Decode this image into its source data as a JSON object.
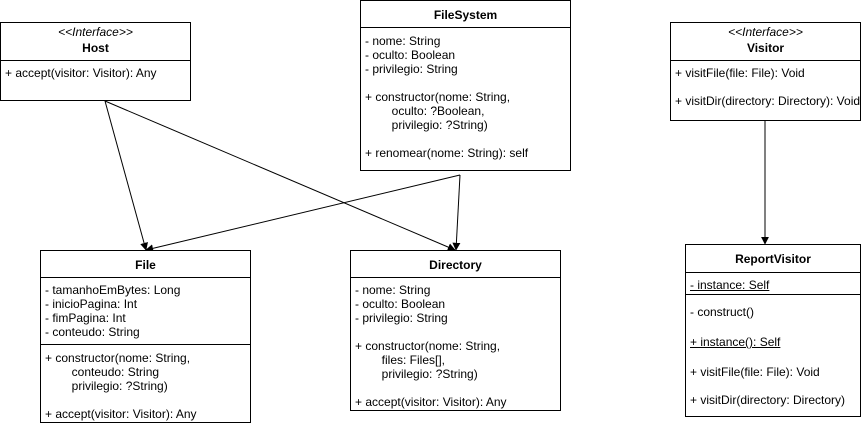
{
  "host": {
    "stereotype": "<<Interface>>",
    "name": "Host",
    "methods": [
      "+ accept(visitor: Visitor): Any"
    ]
  },
  "filesystem": {
    "name": "FileSystem",
    "attributes": [
      "- nome: String",
      "- oculto: Boolean",
      "- privilegio: String"
    ],
    "constructor": [
      "+ constructor(nome: String,",
      "        oculto: ?Boolean,",
      "        privilegio: ?String)"
    ],
    "rename": "+ renomear(nome: String): self"
  },
  "visitor": {
    "stereotype": "<<Interface>>",
    "name": "Visitor",
    "methods": [
      "+ visitFile(file: File): Void",
      "+ visitDir(directory: Directory): Void"
    ]
  },
  "file": {
    "name": "File",
    "attributes": [
      "- tamanhoEmBytes: Long",
      "- inicioPagina: Int",
      "- fimPagina: Int",
      "- conteudo: String"
    ],
    "constructor": [
      "+ constructor(nome: String,",
      "        conteudo: String",
      "        privilegio: ?String)"
    ],
    "accept": "+ accept(visitor: Visitor): Any"
  },
  "directory": {
    "name": "Directory",
    "attributes": [
      "- nome: String",
      "- oculto: Boolean",
      "- privilegio: String"
    ],
    "constructor": [
      "+ constructor(nome: String,",
      "        files: Files[],",
      "        privilegio: ?String)"
    ],
    "accept": "+ accept(visitor: Visitor): Any"
  },
  "reportvisitor": {
    "name": "ReportVisitor",
    "instance_attr": "- instance: Self",
    "construct": "- construct()",
    "instance_method": "+ instance(): Self",
    "visit_file": "+ visitFile(file: File): Void",
    "visit_dir": "+ visitDir(directory: Directory)"
  }
}
